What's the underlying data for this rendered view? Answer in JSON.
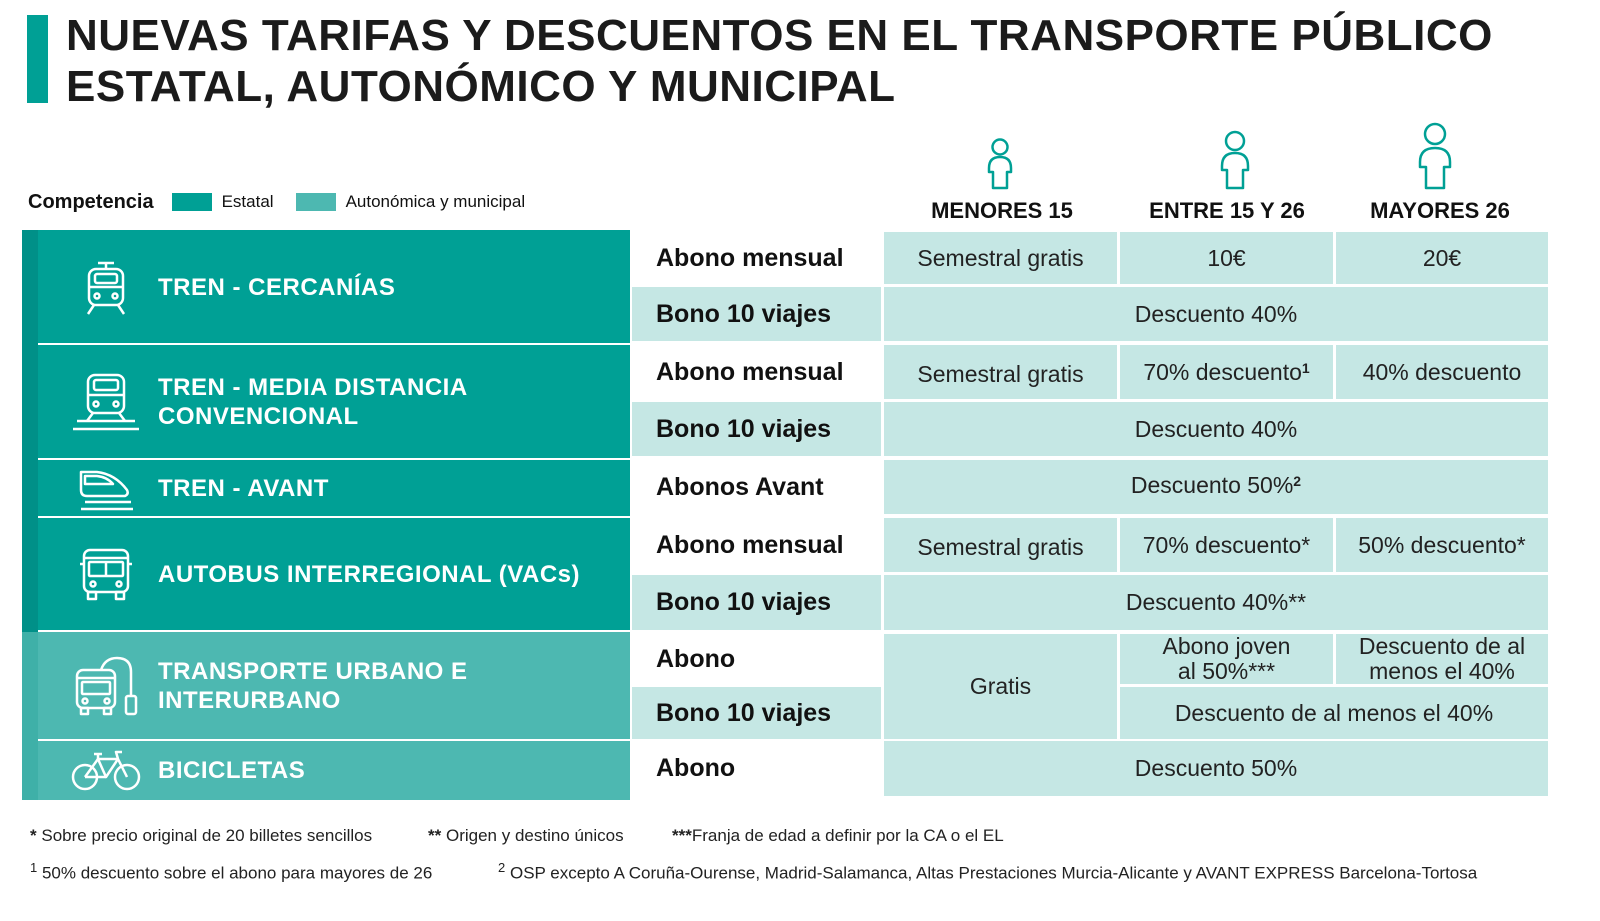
{
  "title": {
    "line1": "NUEVAS TARIFAS Y DESCUENTOS EN EL TRANSPORTE PÚBLICO",
    "line2": "ESTATAL, AUTONÓMICO Y MUNICIPAL"
  },
  "legend": {
    "label": "Competencia",
    "estatal": "Estatal",
    "autonomica": "Autonómica y municipal",
    "estatal_color": "#00a095",
    "autonomica_color": "#4db8b1"
  },
  "columns": [
    "MENORES 15",
    "ENTRE 15 Y 26",
    "MAYORES 26"
  ],
  "modes": [
    {
      "name": "TREN - CERCANÍAS",
      "icon": "train-icon"
    },
    {
      "name": "TREN - MEDIA DISTANCIA",
      "name2": "CONVENCIONAL",
      "icon": "train-rails-icon"
    },
    {
      "name": "TREN - AVANT",
      "icon": "high-speed-train-icon"
    },
    {
      "name": "AUTOBUS INTERREGIONAL (VACs)",
      "icon": "bus-icon"
    },
    {
      "name": "TRANSPORTE URBANO E",
      "name2": "INTERURBANO",
      "icon": "city-bus-icon"
    },
    {
      "name": "BICICLETAS",
      "icon": "bicycle-icon"
    }
  ],
  "products": {
    "abono_mensual": "Abono mensual",
    "bono_10": "Bono 10 viajes",
    "abonos_avant": "Abonos Avant",
    "abono": "Abono"
  },
  "cells": {
    "semestral_gratis": "Semestral gratis",
    "diez_euros": "10€",
    "veinte_euros": "20€",
    "descuento_40": "Descuento 40%",
    "setenta_descuento": "70% descuento",
    "cuarenta_descuento": "40% descuento",
    "descuento_50": "Descuento 50%",
    "setenta_descuento_ast": "70% descuento*",
    "cincuenta_descuento_ast": "50% descuento*",
    "descuento_40_ast": "Descuento 40%**",
    "gratis": "Gratis",
    "abono_joven_1": "Abono joven",
    "abono_joven_2": "al 50%***",
    "desc_al_menos_1": "Descuento de al",
    "desc_al_menos_2": "menos el 40%",
    "desc_al_menos_full": "Descuento de al menos el 40%",
    "sup_1": "1",
    "sup_2": "2"
  },
  "footnotes": {
    "n1_mark": "*",
    "n1": "Sobre precio original de 20 billetes sencillos",
    "n2_mark": "**",
    "n2": "Origen y destino únicos",
    "n3_mark": "***",
    "n3": "Franja de edad a definir por la CA o el EL",
    "n4_mark": "1",
    "n4": "50% descuento sobre el abono para mayores de 26",
    "n5_mark": "2",
    "n5": "OSP excepto A Coruña-Ourense, Madrid-Salamanca, Altas Prestaciones  Murcia-Alicante y AVANT EXPRESS Barcelona-Tortosa"
  }
}
